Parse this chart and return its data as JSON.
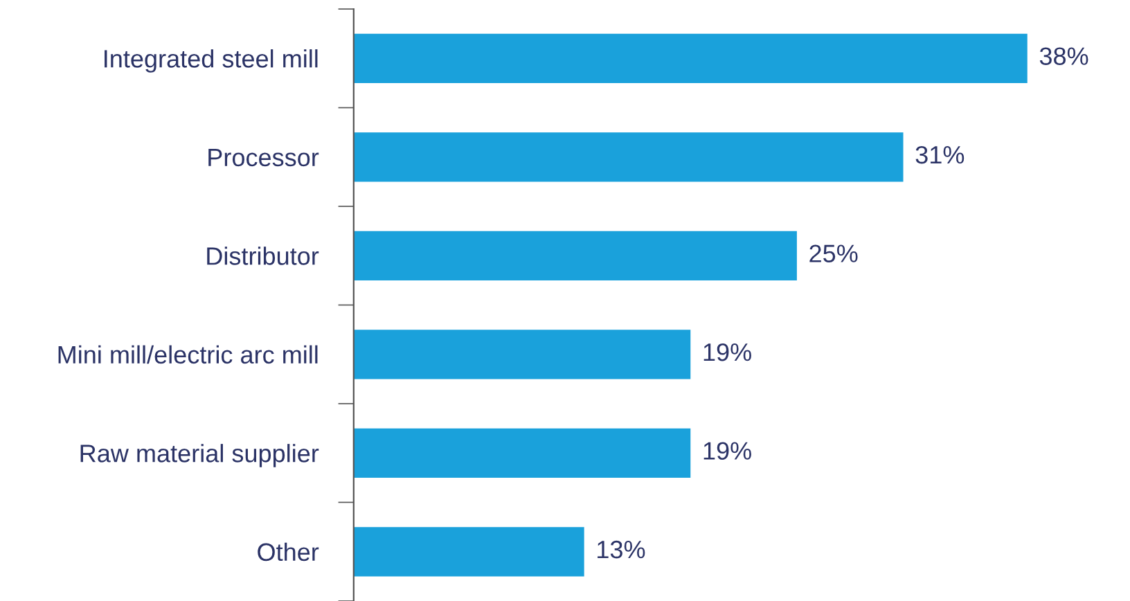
{
  "chart_data": {
    "type": "bar",
    "orientation": "horizontal",
    "categories": [
      "Integrated steel mill",
      "Processor",
      "Distributor",
      "Mini mill/electric arc mill",
      "Raw material supplier",
      "Other"
    ],
    "values": [
      38,
      31,
      25,
      19,
      19,
      13
    ],
    "value_labels": [
      "38%",
      "31%",
      "25%",
      "19%",
      "19%",
      "13%"
    ],
    "color": "#1aa1db",
    "grid": false,
    "legend": false
  }
}
